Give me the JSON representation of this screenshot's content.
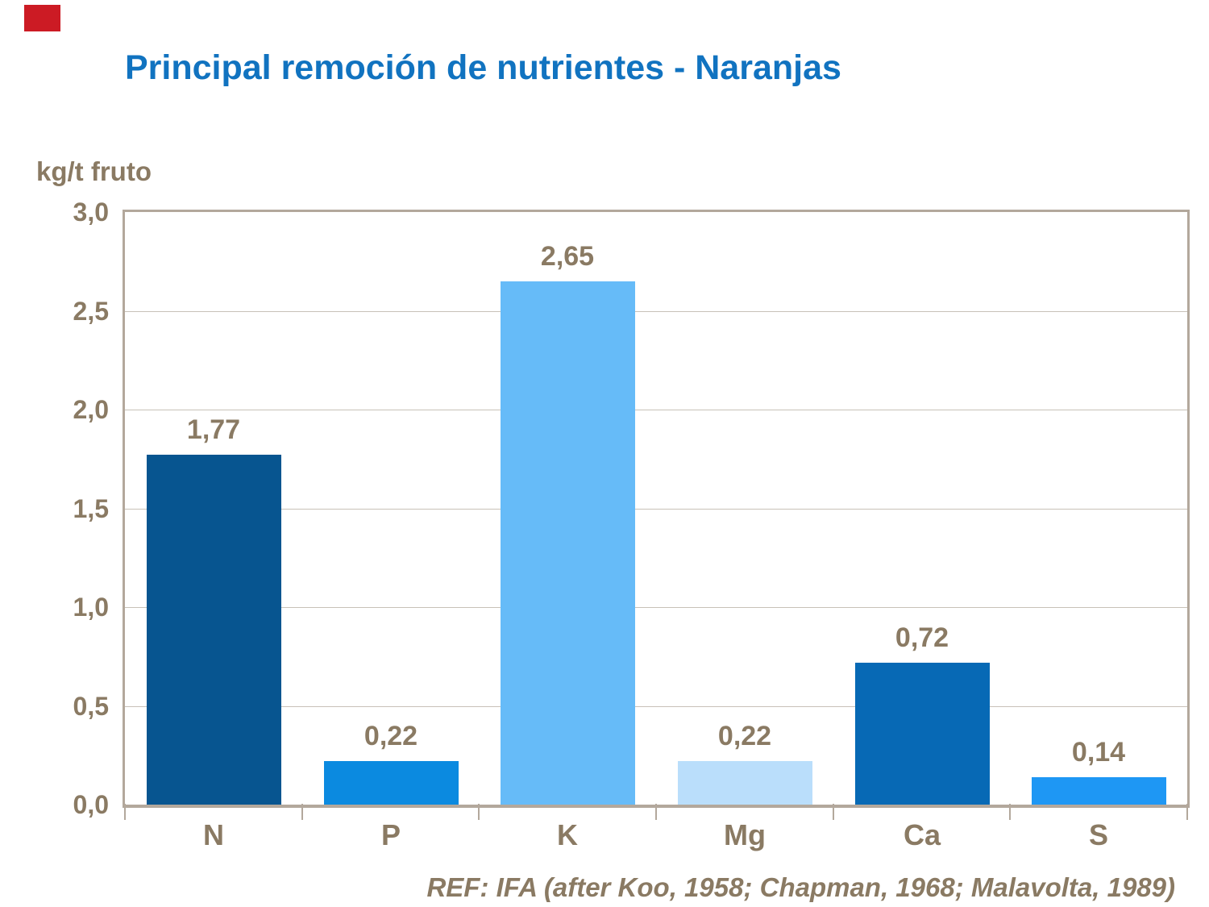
{
  "header": {
    "title": "Principal remoción de nutrientes - Naranjas",
    "title_color": "#1173c0"
  },
  "decorations": {
    "red_marker_color": "#cc1b24"
  },
  "chart_data": {
    "type": "bar",
    "title": "Principal remoción de nutrientes - Naranjas",
    "xlabel": "",
    "ylabel": "kg/t fruto",
    "categories": [
      "N",
      "P",
      "K",
      "Mg",
      "Ca",
      "S"
    ],
    "values": [
      1.77,
      0.22,
      2.65,
      0.22,
      0.72,
      0.14
    ],
    "value_labels": [
      "1,77",
      "0,22",
      "2,65",
      "0,22",
      "0,72",
      "0,14"
    ],
    "bar_colors": [
      "#075590",
      "#0b8ae0",
      "#66bbf8",
      "#badefb",
      "#0769b5",
      "#1e97f4"
    ],
    "ylim": [
      0,
      3
    ],
    "ytick_labels": [
      "3,0",
      "2,5",
      "2,0",
      "1,5",
      "1,0",
      "0,5",
      "0,0"
    ],
    "grid": true,
    "legend_position": "none",
    "text_color": "#8a7a63",
    "frame_color": "#b3a89c",
    "gridline_color": "#c8c1b8"
  },
  "footer": {
    "reference": "REF: IFA (after Koo, 1958; Chapman, 1968; Malavolta, 1989)"
  }
}
